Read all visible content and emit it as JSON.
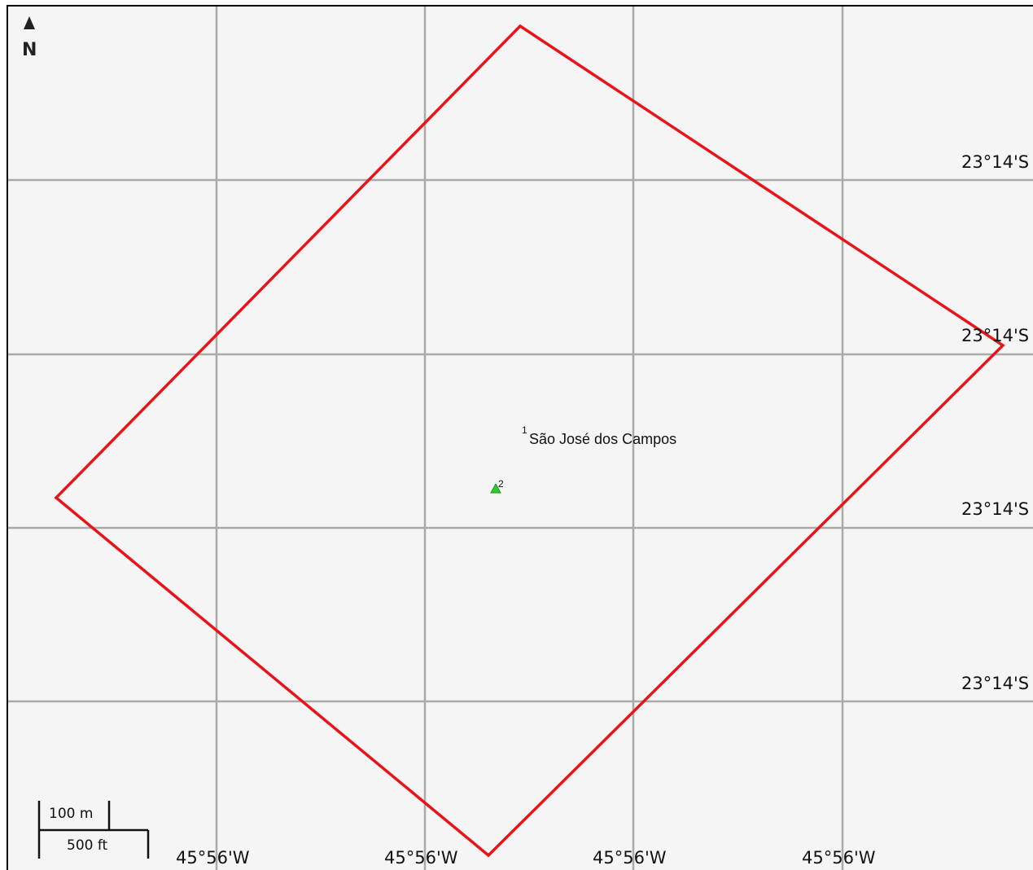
{
  "map": {
    "north_label": "N",
    "north_icon": "north-arrow-icon",
    "boundary_color": "#e8141a",
    "marker_color": "#2ecc2e",
    "grid_color": "#a9a9a9",
    "background_color": "#f5f5f5"
  },
  "labels": {
    "lat": [
      "23°14'S",
      "23°14'S",
      "23°14'S",
      "23°14'S"
    ],
    "lon": [
      "45°56'W",
      "45°56'W",
      "45°56'W",
      "45°56'W"
    ]
  },
  "places": [
    {
      "number": "1",
      "name": "São José dos Campos"
    },
    {
      "number": "2",
      "name": ""
    }
  ],
  "scale": {
    "metric": "100 m",
    "imperial": "500 ft"
  }
}
